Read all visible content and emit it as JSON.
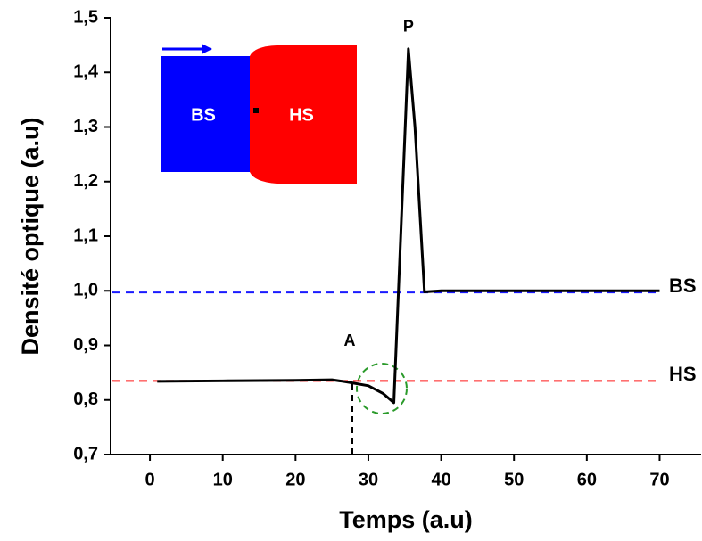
{
  "chart_data": {
    "type": "line",
    "x_label": "Temps (a.u)",
    "y_label": "Densité optique (a.u)",
    "x": [
      1,
      10,
      20,
      25,
      27,
      30,
      32,
      33.5,
      35.5,
      36.4,
      37.7,
      40,
      50,
      60,
      70
    ],
    "series": [
      {
        "color": "#000000",
        "values": [
          0.834,
          0.835,
          0.836,
          0.837,
          0.833,
          0.826,
          0.812,
          0.795,
          1.443,
          1.3,
          0.998,
          1.0,
          1.0,
          1.0,
          1.0
        ]
      }
    ],
    "xlim": [
      -5.4,
      75.7
    ],
    "ylim": [
      0.7,
      1.5
    ],
    "xticks": [
      0,
      10,
      20,
      30,
      40,
      50,
      60,
      70
    ],
    "yticks": [
      {
        "value": 0.7,
        "label": "0,7"
      },
      {
        "value": 0.8,
        "label": "0,8"
      },
      {
        "value": 0.9,
        "label": "0,9"
      },
      {
        "value": 1.0,
        "label": "1,0"
      },
      {
        "value": 1.1,
        "label": "1,1"
      },
      {
        "value": 1.2,
        "label": "1,2"
      },
      {
        "value": 1.3,
        "label": "1,3"
      },
      {
        "value": 1.4,
        "label": "1,4"
      },
      {
        "value": 1.5,
        "label": "1,5"
      }
    ],
    "reference_lines": [
      {
        "label": "BS",
        "value": 0.997,
        "color": "#1a1aff"
      },
      {
        "label": "HS",
        "value": 0.835,
        "color": "#ff1a1a"
      }
    ],
    "annotations": [
      {
        "text": "A",
        "x": 27.8
      },
      {
        "text": "P",
        "x": 35.5
      }
    ],
    "inset": {
      "labels": [
        "BS",
        "HS"
      ]
    }
  }
}
